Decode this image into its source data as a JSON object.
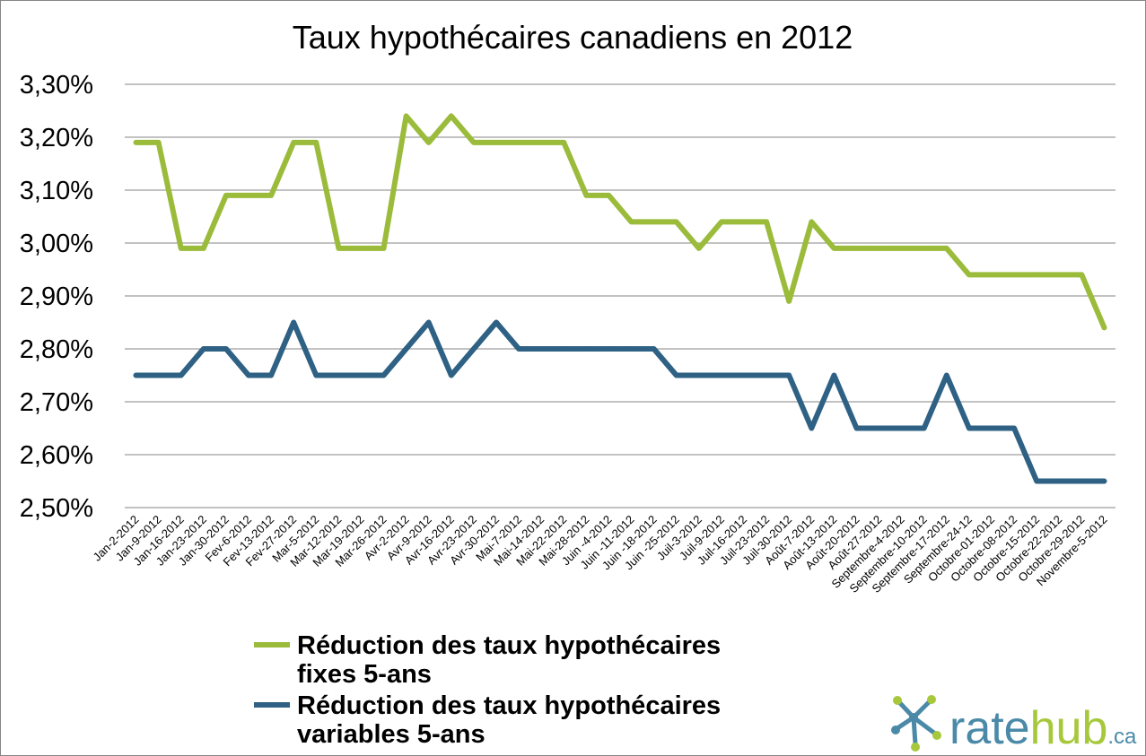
{
  "chart_data": {
    "type": "line",
    "title": "Taux hypothécaires canadiens en 2012",
    "xlabel": "",
    "ylabel": "",
    "ylim": [
      2.5,
      3.3
    ],
    "ytick_values": [
      2.5,
      2.6,
      2.7,
      2.8,
      2.9,
      3.0,
      3.1,
      3.2,
      3.3
    ],
    "ytick_labels": [
      "2,50%",
      "2,60%",
      "2,70%",
      "2,80%",
      "2,90%",
      "3,00%",
      "3,10%",
      "3,20%",
      "3,30%"
    ],
    "grid": true,
    "legend_position": "bottom-left",
    "categories": [
      "Jan-2-2012",
      "Jan-9-2012",
      "Jan-16-2012",
      "Jan-23-2012",
      "Jan-30-2012",
      "Fev-6-2012",
      "Fev-13-2012",
      "Fev-27-2012",
      "Mar-5-2012",
      "Mar-12-2012",
      "Mar-19-2012",
      "Mar-26-2012",
      "Avr-2-2012",
      "Avr-9-2012",
      "Avr-16-2012",
      "Avr-23-2012",
      "Avr-30-2012",
      "Mai-7-2012",
      "Mai-14-2012",
      "Mai-22-2012",
      "Mai-28-2012",
      "Juin -4-2012",
      "Juin -11-2012",
      "Juin -18-2012",
      "Juin -25-2012",
      "Juil-3-2012",
      "Juil-9-2012",
      "Juil-16-2012",
      "Juil-23-2012",
      "Juil-30-2012",
      "Août-7-2012",
      "Août-13-2012",
      "Août-20-2012",
      "Août-27-2012",
      "Septembre-4-2012",
      "Septembre-10-2012",
      "Septembre-17-2012",
      "Septembre-24-12",
      "Octobre-01-2012",
      "Octobre-08-2012",
      "Octobre-15-2012",
      "Octobre-22-2012",
      "Octobre-29-2012",
      "Novembre-5-2012"
    ],
    "series": [
      {
        "name": "Réduction des taux hypothécaires fixes 5-ans",
        "name_lines": [
          "Réduction des taux hypothécaires",
          "fixes 5-ans"
        ],
        "color": "#9BBB3B",
        "values": [
          3.19,
          3.19,
          2.99,
          2.99,
          3.09,
          3.09,
          3.09,
          3.19,
          3.19,
          2.99,
          2.99,
          2.99,
          3.24,
          3.19,
          3.24,
          3.19,
          3.19,
          3.19,
          3.19,
          3.19,
          3.09,
          3.09,
          3.04,
          3.04,
          3.04,
          2.99,
          3.04,
          3.04,
          3.04,
          2.89,
          3.04,
          2.99,
          2.99,
          2.99,
          2.99,
          2.99,
          2.99,
          2.94,
          2.94,
          2.94,
          2.94,
          2.94,
          2.94,
          2.84
        ]
      },
      {
        "name": "Réduction des taux hypothécaires variables 5-ans",
        "name_lines": [
          "Réduction des taux hypothécaires",
          "variables 5-ans"
        ],
        "color": "#2E6184",
        "values": [
          2.75,
          2.75,
          2.75,
          2.8,
          2.8,
          2.75,
          2.75,
          2.85,
          2.75,
          2.75,
          2.75,
          2.75,
          2.8,
          2.85,
          2.75,
          2.8,
          2.85,
          2.8,
          2.8,
          2.8,
          2.8,
          2.8,
          2.8,
          2.8,
          2.75,
          2.75,
          2.75,
          2.75,
          2.75,
          2.75,
          2.65,
          2.75,
          2.65,
          2.65,
          2.65,
          2.65,
          2.75,
          2.65,
          2.65,
          2.65,
          2.55,
          2.55,
          2.55,
          2.55
        ]
      }
    ]
  },
  "logo": {
    "brand_part1": "rate",
    "brand_part2": "hub",
    "suffix": ".ca",
    "color_part1": "#4a8aa8",
    "color_part2": "#a6c83a"
  }
}
